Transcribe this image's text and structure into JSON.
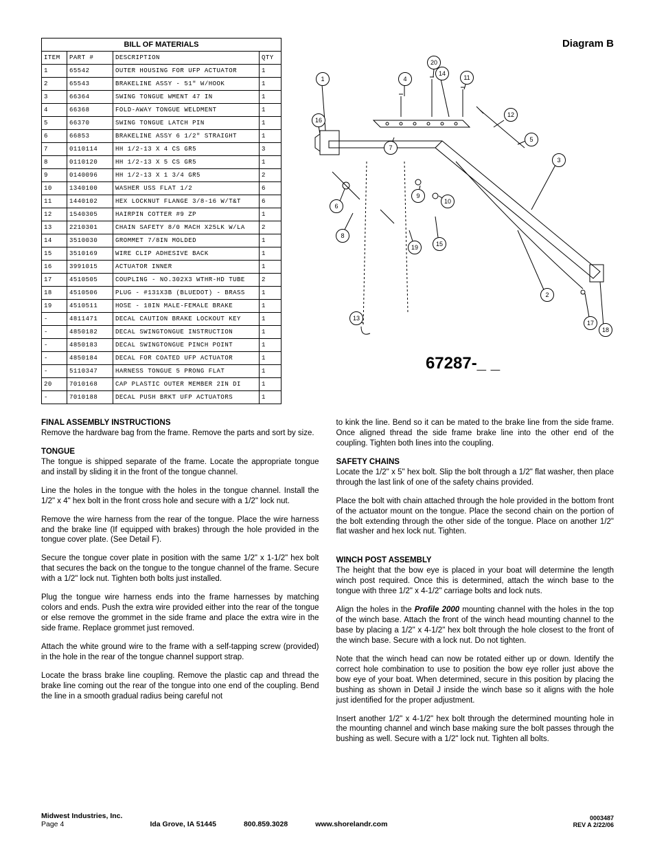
{
  "diagram_label": "Diagram B",
  "part_number": "67287-_ _",
  "bom": {
    "title": "BILL OF MATERIALS",
    "headers": {
      "item": "ITEM",
      "part": "PART #",
      "desc": "DESCRIPTION",
      "qty": "QTY"
    },
    "rows": [
      {
        "item": "1",
        "part": "65542",
        "desc": "OUTER HOUSING FOR UFP ACTUATOR",
        "qty": "1"
      },
      {
        "item": "2",
        "part": "65543",
        "desc": "BRAKELINE ASSY - 51\" W/HOOK",
        "qty": "1"
      },
      {
        "item": "3",
        "part": "66364",
        "desc": "SWING TONGUE WMENT 47 IN",
        "qty": "1"
      },
      {
        "item": "4",
        "part": "66368",
        "desc": "FOLD-AWAY TONGUE WELDMENT",
        "qty": "1"
      },
      {
        "item": "5",
        "part": "66370",
        "desc": "SWING TONGUE LATCH PIN",
        "qty": "1"
      },
      {
        "item": "6",
        "part": "66853",
        "desc": "BRAKELINE ASSY 6 1/2\" STRAIGHT",
        "qty": "1"
      },
      {
        "item": "7",
        "part": "0110114",
        "desc": "HH 1/2-13 X 4 CS GR5",
        "qty": "3"
      },
      {
        "item": "8",
        "part": "0110120",
        "desc": "HH 1/2-13 X 5 CS GR5",
        "qty": "1"
      },
      {
        "item": "9",
        "part": "0140096",
        "desc": "HH 1/2-13 X 1 3/4 GR5",
        "qty": "2"
      },
      {
        "item": "10",
        "part": "1340100",
        "desc": "WASHER USS FLAT 1/2",
        "qty": "6"
      },
      {
        "item": "11",
        "part": "1440102",
        "desc": "HEX LOCKNUT FLANGE 3/8-16 W/T&T",
        "qty": "6"
      },
      {
        "item": "12",
        "part": "1540305",
        "desc": "HAIRPIN COTTER #9 ZP",
        "qty": "1"
      },
      {
        "item": "13",
        "part": "2210301",
        "desc": "CHAIN SAFETY 8/0 MACH X25LK W/LA",
        "qty": "2"
      },
      {
        "item": "14",
        "part": "3510030",
        "desc": "GROMMET  7/8IN MOLDED",
        "qty": "1"
      },
      {
        "item": "15",
        "part": "3510169",
        "desc": "WIRE CLIP   ADHESIVE BACK",
        "qty": "1"
      },
      {
        "item": "16",
        "part": "3991015",
        "desc": "ACTUATOR INNER",
        "qty": "1"
      },
      {
        "item": "17",
        "part": "4510505",
        "desc": "COUPLING - NO.302X3 WTHR-HD TUBE",
        "qty": "2"
      },
      {
        "item": "18",
        "part": "4510506",
        "desc": "PLUG - #131X3B (BLUEDOT) - BRASS",
        "qty": "1"
      },
      {
        "item": "19",
        "part": "4510511",
        "desc": "HOSE - 18IN MALE-FEMALE BRAKE",
        "qty": "1"
      },
      {
        "item": "-",
        "part": "4811471",
        "desc": "DECAL CAUTION BRAKE LOCKOUT KEY",
        "qty": "1"
      },
      {
        "item": "-",
        "part": "4850182",
        "desc": "DECAL SWINGTONGUE INSTRUCTION",
        "qty": "1"
      },
      {
        "item": "-",
        "part": "4850183",
        "desc": "DECAL SWINGTONGUE PINCH POINT",
        "qty": "1"
      },
      {
        "item": "-",
        "part": "4850184",
        "desc": "DECAL FOR COATED UFP ACTUATOR",
        "qty": "1"
      },
      {
        "item": "-",
        "part": "5110347",
        "desc": "HARNESS  TONGUE 5 PRONG FLAT",
        "qty": "1"
      },
      {
        "item": "20",
        "part": "7010168",
        "desc": "CAP  PLASTIC OUTER MEMBER 2IN DI",
        "qty": "1"
      },
      {
        "item": "-",
        "part": "7010188",
        "desc": "DECAL PUSH BRKT UFP ACTUATORS",
        "qty": "1"
      }
    ]
  },
  "diagram_callouts": [
    "1",
    "4",
    "20",
    "14",
    "11",
    "16",
    "7",
    "12",
    "5",
    "6",
    "9",
    "10",
    "3",
    "8",
    "19",
    "15",
    "13",
    "2",
    "17",
    "18"
  ],
  "instructions": {
    "title": "FINAL ASSEMBLY INSTRUCTIONS",
    "intro": "Remove the hardware bag from the frame. Remove the parts and sort by size.",
    "tongue_head": "TONGUE",
    "tongue_p1": "The tongue is shipped separate of the frame. Locate the appropriate tongue and install by sliding it in the front of the tongue channel.",
    "tongue_p2": "Line the holes in the tongue with the holes in the tongue channel. Install the 1/2\" x 4\" hex bolt in the front cross hole and secure with a 1/2\" lock nut.",
    "tongue_p3": "Remove the wire harness from the rear of the tongue. Place the wire harness and the brake line (If equipped with brakes) through the hole provided in the tongue cover plate. (See Detail F).",
    "tongue_p4": "Secure the tongue cover plate in position with the same 1/2\" x 1-1/2\" hex bolt that secures the back on the tongue to the tongue channel of the frame. Secure with a 1/2\" lock nut. Tighten both bolts just installed.",
    "tongue_p5": "Plug the tongue wire harness ends into the frame harnesses by matching colors and ends. Push the extra wire provided either into the rear of the tongue or else remove the grommet in the side frame and place the extra wire in the side frame. Replace grommet just removed.",
    "tongue_p6": "Attach the white ground wire to the frame with a self-tapping screw (provided) in the hole in the rear of the tongue channel support strap.",
    "tongue_p7": "Locate the brass brake line coupling. Remove the plastic cap and thread the brake line coming out the rear of the tongue into one end of the coupling. Bend the line in a smooth gradual radius being careful not",
    "col2_p1": "to kink the line. Bend so it can be mated to the brake line from the side frame. Once aligned thread the side frame brake line into the other end of the coupling. Tighten both lines into the coupling.",
    "safety_head": "SAFETY CHAINS",
    "safety_p1": "Locate the 1/2\" x 5\" hex bolt. Slip the bolt through a 1/2\" flat washer, then place through the last link of one of the safety chains provided.",
    "safety_p2": "Place the bolt with chain attached through the hole provided in the bottom front of the actuator mount on the tongue. Place the second chain on the portion of the bolt extending through the other side of the tongue. Place on another 1/2\" flat washer and hex lock nut. Tighten.",
    "winch_head": "WINCH POST ASSEMBLY",
    "winch_p1": "The height that the bow eye is placed in your boat will determine the length winch post required. Once this is determined, attach the winch base to the tongue with three 1/2\" x 4-1/2\" carriage bolts and lock nuts.",
    "winch_p2_a": "Align the holes in the ",
    "winch_p2_em": "Profile 2000",
    "winch_p2_b": " mounting channel with the holes in the top of the winch base. Attach the front of the winch head mounting channel to the base by placing a 1/2\" x 4-1/2\" hex bolt through the hole closest to the front of the winch base. Secure with a  lock nut. Do not tighten.",
    "winch_p3": "Note that the winch head can now be rotated either up or down. Identify the correct hole combination to use to position the bow eye roller just above the bow eye of your boat. When determined, secure in this position by placing the bushing as shown in Detail J inside the winch base so it aligns with the hole just identified for the proper adjustment.",
    "winch_p4": "Insert another 1/2\" x 4-1/2\" hex bolt through the determined mounting hole in the mounting channel and winch base making sure the bolt passes through the bushing as well. Secure with a 1/2\" lock nut. Tighten all bolts."
  },
  "footer": {
    "company": "Midwest Industries, Inc.",
    "page": "Page 4",
    "location": "Ida Grove, IA  51445",
    "phone": "800.859.3028",
    "website": "www.shorelandr.com",
    "docnum": "0003487",
    "rev": "REV A  2/22/06"
  }
}
